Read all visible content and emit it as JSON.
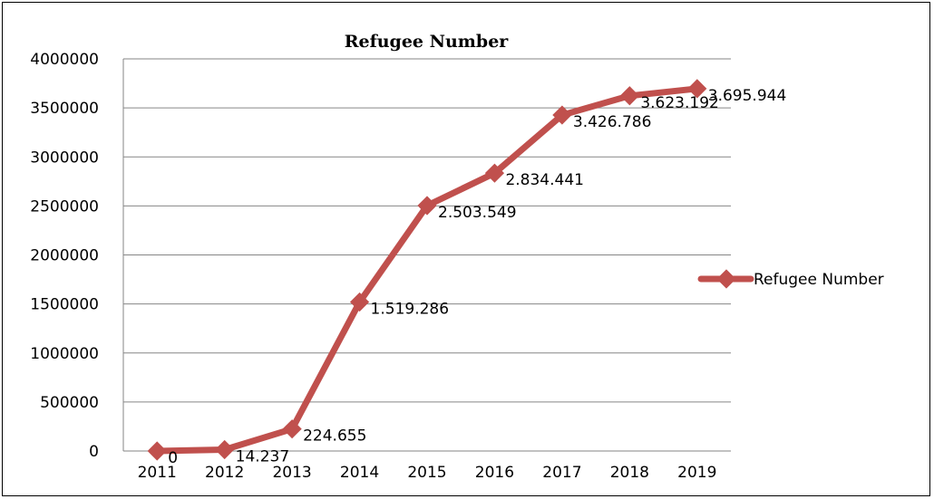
{
  "chart_data": {
    "type": "line",
    "title": "Refugee Number",
    "xlabel": "",
    "ylabel": "",
    "categories": [
      "2011",
      "2012",
      "2013",
      "2014",
      "2015",
      "2016",
      "2017",
      "2018",
      "2019"
    ],
    "series": [
      {
        "name": "Refugee Number",
        "values": [
          0,
          14237,
          224655,
          1519286,
          2503549,
          2834441,
          3426786,
          3623192,
          3695944
        ],
        "labels": [
          "0",
          "14.237",
          "224.655",
          "1.519.286",
          "2.503.549",
          "2.834.441",
          "3.426.786",
          "3.623.192",
          "3.695.944"
        ],
        "color": "#c0504d"
      }
    ],
    "ylim": [
      0,
      4000000
    ],
    "yticks": [
      "0",
      "500000",
      "1000000",
      "1500000",
      "2000000",
      "2500000",
      "3000000",
      "3500000",
      "4000000"
    ],
    "grid": true,
    "legend_position": "right"
  }
}
